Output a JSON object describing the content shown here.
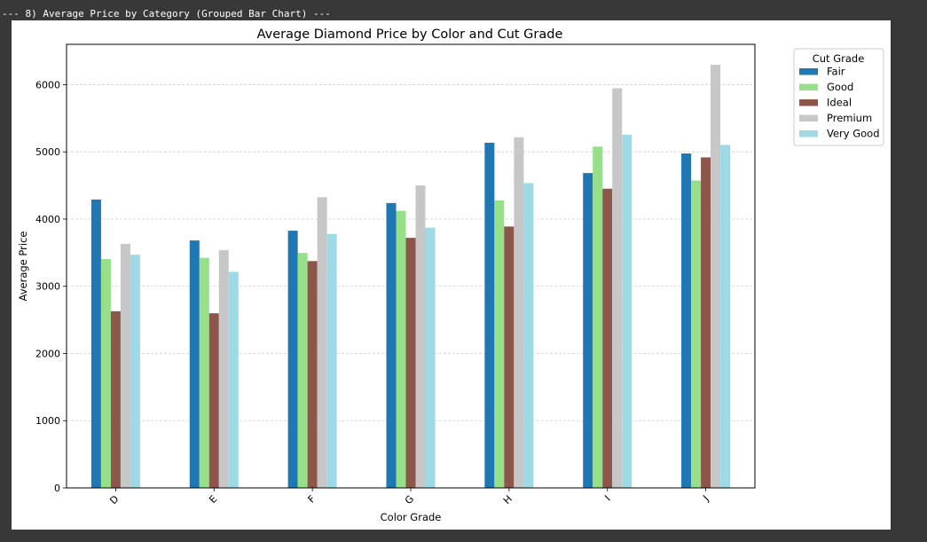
{
  "console": {
    "header_text": "--- 8) Average Price by Category (Grouped Bar Chart) ---"
  },
  "chart_data": {
    "type": "bar",
    "title": "Average Diamond Price by Color and Cut Grade",
    "xlabel": "Color Grade",
    "ylabel": "Average Price",
    "categories": [
      "D",
      "E",
      "F",
      "G",
      "H",
      "I",
      "J"
    ],
    "ylim": [
      0,
      6600
    ],
    "yticks": [
      0,
      1000,
      2000,
      3000,
      4000,
      5000,
      6000
    ],
    "grid": "y-dashed",
    "legend": {
      "title": "Cut Grade",
      "placement": "outside-top-right"
    },
    "series": [
      {
        "name": "Fair",
        "color": "#1f77b4",
        "values": [
          4291,
          3682,
          3827,
          4239,
          5136,
          4685,
          4976
        ]
      },
      {
        "name": "Good",
        "color": "#98df8a",
        "values": [
          3405,
          3424,
          3496,
          4123,
          4277,
          5079,
          4574
        ]
      },
      {
        "name": "Ideal",
        "color": "#8c564b",
        "values": [
          2629,
          2598,
          3375,
          3721,
          3889,
          4452,
          4918
        ]
      },
      {
        "name": "Premium",
        "color": "#c7c7c7",
        "values": [
          3631,
          3539,
          4325,
          4501,
          5217,
          5946,
          6295
        ]
      },
      {
        "name": "Very Good",
        "color": "#9edae5",
        "values": [
          3470,
          3215,
          3779,
          3873,
          4535,
          5256,
          5104
        ]
      }
    ]
  }
}
